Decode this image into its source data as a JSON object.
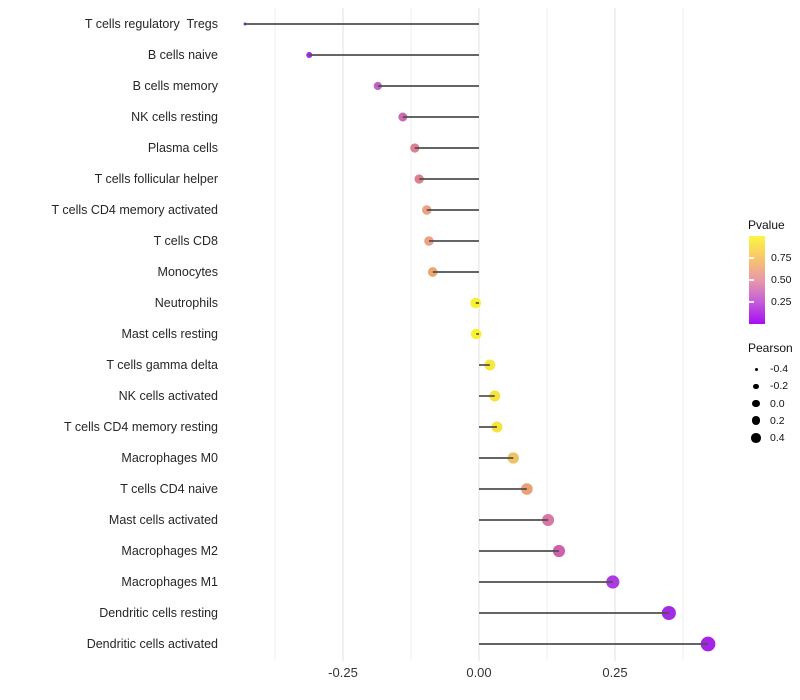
{
  "chart_data": {
    "type": "lollipop-scatter",
    "title": "",
    "xlabel": "",
    "ylabel": "",
    "grid": "vertical gridlines only, white background",
    "xlim": [
      -0.44,
      0.44
    ],
    "x_ticks": {
      "labels": [
        "-0.25",
        "0.00",
        "0.25"
      ],
      "values": [
        -0.25,
        0.0,
        0.25
      ],
      "minor_values": [
        -0.375,
        -0.125,
        0.125,
        0.375
      ]
    },
    "stem_color": "#4F4F4F",
    "rows": [
      {
        "name": "T cells regulatory  Tregs",
        "pearson": -0.43,
        "pvalue_est": 0.01,
        "color": "#7224BE"
      },
      {
        "name": "B cells naive",
        "pearson": -0.312,
        "pvalue_est": 0.05,
        "color": "#9D32DF"
      },
      {
        "name": "B cells memory",
        "pearson": -0.186,
        "pvalue_est": 0.22,
        "color": "#C261C8"
      },
      {
        "name": "NK cells resting",
        "pearson": -0.14,
        "pvalue_est": 0.28,
        "color": "#CC69B0"
      },
      {
        "name": "Plasma cells",
        "pearson": -0.118,
        "pvalue_est": 0.42,
        "color": "#DE8091"
      },
      {
        "name": "T cells follicular helper",
        "pearson": -0.11,
        "pvalue_est": 0.43,
        "color": "#DD7F8D"
      },
      {
        "name": "T cells CD4 memory activated",
        "pearson": -0.096,
        "pvalue_est": 0.55,
        "color": "#ECA183"
      },
      {
        "name": "T cells CD8",
        "pearson": -0.092,
        "pvalue_est": 0.55,
        "color": "#ECA183"
      },
      {
        "name": "Monocytes",
        "pearson": -0.085,
        "pvalue_est": 0.6,
        "color": "#EEA56E"
      },
      {
        "name": "Neutrophils",
        "pearson": -0.006,
        "pvalue_est": 0.95,
        "color": "#F9F12F"
      },
      {
        "name": "Mast cells resting",
        "pearson": -0.005,
        "pvalue_est": 0.95,
        "color": "#F9F12F"
      },
      {
        "name": "T cells gamma delta",
        "pearson": 0.02,
        "pvalue_est": 0.9,
        "color": "#F7E83E"
      },
      {
        "name": "NK cells activated",
        "pearson": 0.029,
        "pvalue_est": 0.88,
        "color": "#F6E43E"
      },
      {
        "name": "T cells CD4 memory resting",
        "pearson": 0.033,
        "pvalue_est": 0.88,
        "color": "#F6E43E"
      },
      {
        "name": "Macrophages M0",
        "pearson": 0.063,
        "pvalue_est": 0.78,
        "color": "#EEC366"
      },
      {
        "name": "T cells CD4 naive",
        "pearson": 0.088,
        "pvalue_est": 0.62,
        "color": "#E9A077"
      },
      {
        "name": "Mast cells activated",
        "pearson": 0.127,
        "pvalue_est": 0.4,
        "color": "#D876A4"
      },
      {
        "name": "Macrophages M2",
        "pearson": 0.147,
        "pvalue_est": 0.3,
        "color": "#CD61AE"
      },
      {
        "name": "Macrophages M1",
        "pearson": 0.246,
        "pvalue_est": 0.08,
        "color": "#AC3BE2"
      },
      {
        "name": "Dendritic cells resting",
        "pearson": 0.349,
        "pvalue_est": 0.05,
        "color": "#A42BE4"
      },
      {
        "name": "Dendritic cells activated",
        "pearson": 0.421,
        "pvalue_est": 0.04,
        "color": "#A524E8"
      }
    ],
    "legend_pvalue": {
      "title": "Pvalue",
      "tick_labels": [
        "0.75",
        "0.50",
        "0.25"
      ],
      "tick_values": [
        0.75,
        0.5,
        0.25
      ],
      "range": [
        0,
        1
      ],
      "gradient_bottom_to_top": [
        {
          "stop": 0.0,
          "color": "#A60EF4"
        },
        {
          "stop": 0.26,
          "color": "#C65FD8"
        },
        {
          "stop": 0.5,
          "color": "#E899A8"
        },
        {
          "stop": 0.74,
          "color": "#F8C46E"
        },
        {
          "stop": 1.0,
          "color": "#FBF640"
        }
      ]
    },
    "legend_pearson": {
      "title": "Pearson",
      "entries": [
        {
          "label": "-0.4",
          "value": -0.4
        },
        {
          "label": "-0.2",
          "value": -0.2
        },
        {
          "label": "0.0",
          "value": 0.0
        },
        {
          "label": "0.2",
          "value": 0.2
        },
        {
          "label": "0.4",
          "value": 0.4
        }
      ],
      "dot_color": "#000000"
    }
  }
}
